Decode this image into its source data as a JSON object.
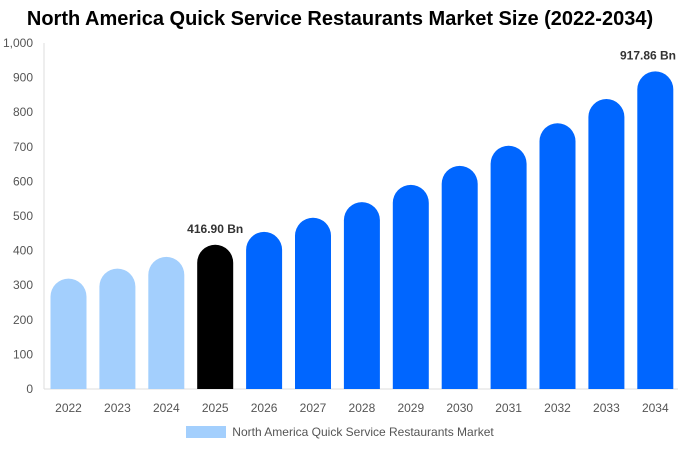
{
  "chart_data": {
    "type": "bar",
    "title": "North America Quick Service Restaurants Market Size (2022-2034)",
    "categories": [
      "2022",
      "2023",
      "2024",
      "2025",
      "2026",
      "2027",
      "2028",
      "2029",
      "2030",
      "2031",
      "2032",
      "2033",
      "2034"
    ],
    "series": [
      {
        "name": "North America Quick Service Restaurants Market",
        "values": [
          319,
          348,
          382,
          416.9,
          454,
          495,
          540,
          590,
          645,
          703,
          768,
          838,
          917.86
        ]
      }
    ],
    "data_labels": {
      "2025": "416.90 Bn",
      "2034": "917.86 Bn"
    },
    "ylim": [
      0,
      1000
    ],
    "yticks": [
      "0",
      "100",
      "200",
      "300",
      "400",
      "500",
      "600",
      "700",
      "800",
      "900",
      "1,000"
    ],
    "grid": false,
    "legend_position": "bottom",
    "colors": {
      "historical": "#a3cffd",
      "current": "#000000",
      "forecast": "#0066ff",
      "legend": "#a3cffd"
    },
    "color_groups": [
      "historical",
      "historical",
      "historical",
      "current",
      "forecast",
      "forecast",
      "forecast",
      "forecast",
      "forecast",
      "forecast",
      "forecast",
      "forecast",
      "forecast"
    ]
  }
}
